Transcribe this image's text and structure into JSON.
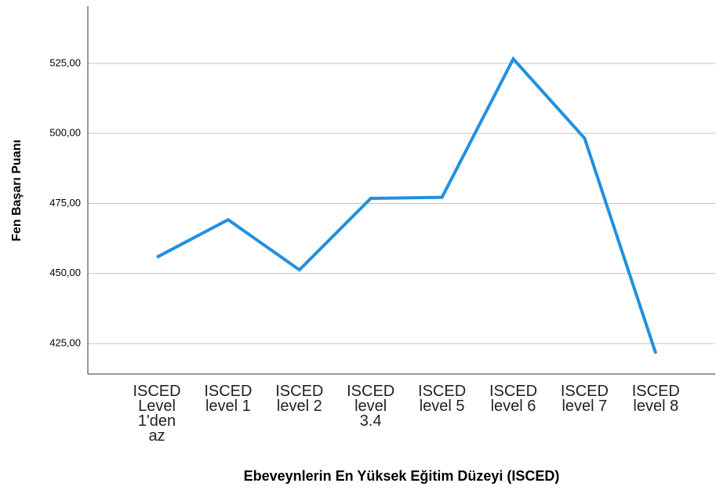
{
  "chart_data": {
    "type": "line",
    "ylabel": "Fen Başarı Puanı",
    "xlabel": "Ebeveynlerin En Yüksek Eğitim Düzeyi (ISCED)",
    "categories": [
      "ISCED Level 1'den az",
      "ISCED level 1",
      "ISCED level 2",
      "ISCED level 3.4",
      "ISCED level 5",
      "ISCED level 6",
      "ISCED level 7",
      "ISCED level 8"
    ],
    "values": [
      455.8,
      469.2,
      451.3,
      476.8,
      477.2,
      526.6,
      498.3,
      421.4
    ],
    "color": "#2290e0",
    "ylim": [
      414.1,
      545.4
    ],
    "yticks": [
      {
        "value": 425,
        "label": "425,00"
      },
      {
        "value": 450,
        "label": "450,00"
      },
      {
        "value": 475,
        "label": "475,00"
      },
      {
        "value": 500,
        "label": "500,00"
      },
      {
        "value": 525,
        "label": "525,00"
      }
    ],
    "grid": true
  }
}
